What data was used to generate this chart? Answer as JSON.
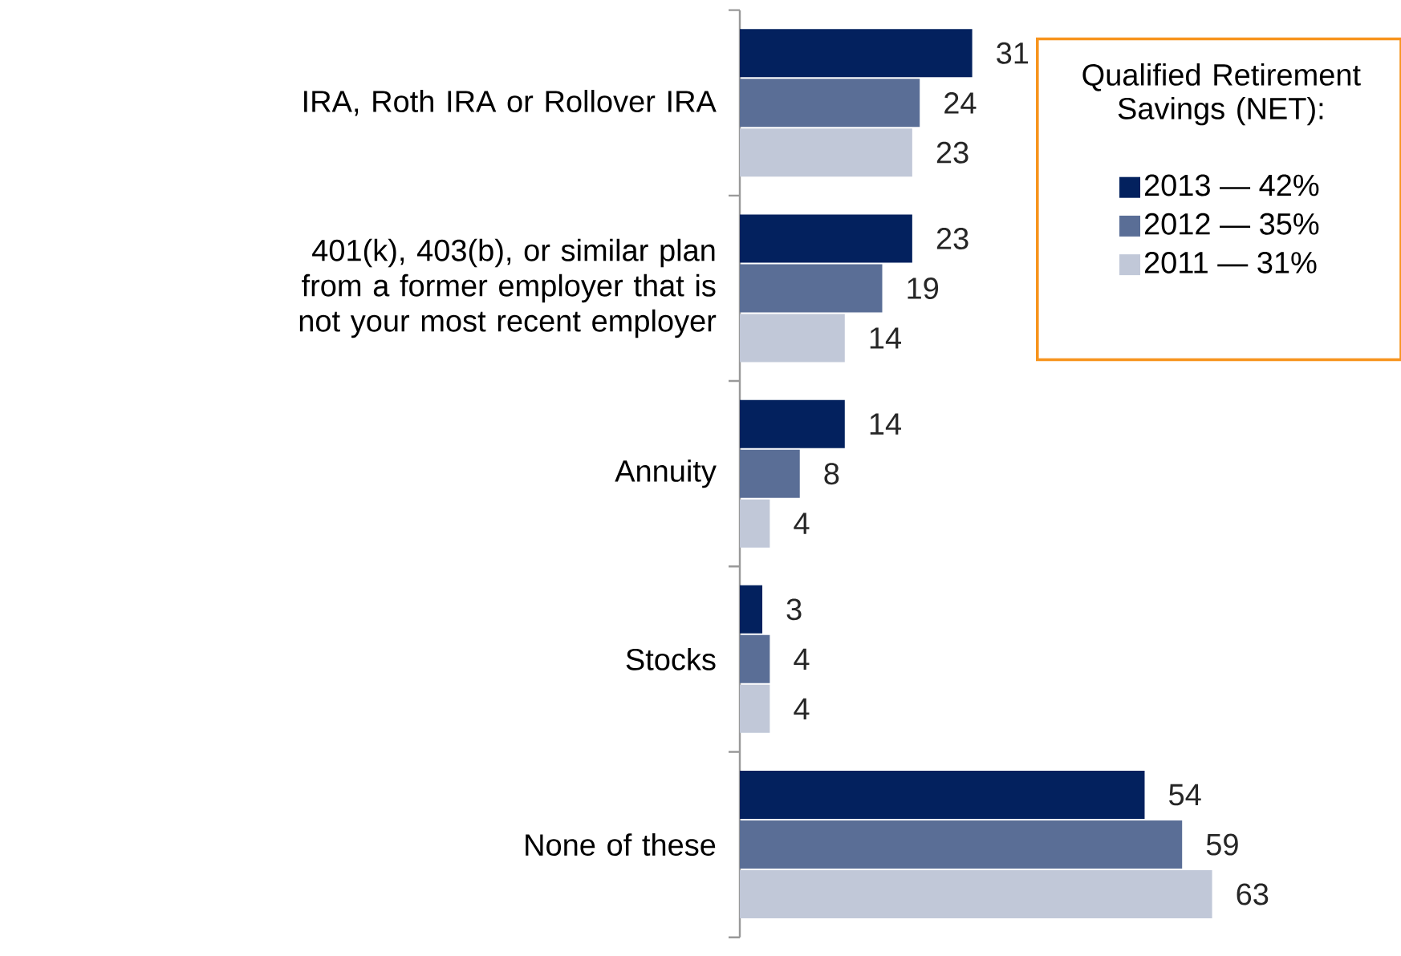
{
  "chart_data": {
    "type": "bar",
    "orientation": "horizontal",
    "categories": [
      "IRA, Roth IRA or Rollover IRA",
      "401(k), 403(b), or similar plan from a former employer that is not your most recent employer",
      "Annuity",
      "Stocks",
      "None of these"
    ],
    "legend_title": "Qualified Retirement Savings (NET):",
    "series": [
      {
        "name": "2013 — 42%",
        "color": "#03215e",
        "values": [
          31,
          23,
          14,
          3,
          54
        ]
      },
      {
        "name": "2012 — 35%",
        "color": "#5a6e96",
        "values": [
          24,
          19,
          8,
          4,
          59
        ]
      },
      {
        "name": "2011 — 31%",
        "color": "#c1c8d8",
        "values": [
          23,
          14,
          4,
          4,
          63
        ]
      }
    ],
    "data_labels": true,
    "legend": "top right"
  }
}
